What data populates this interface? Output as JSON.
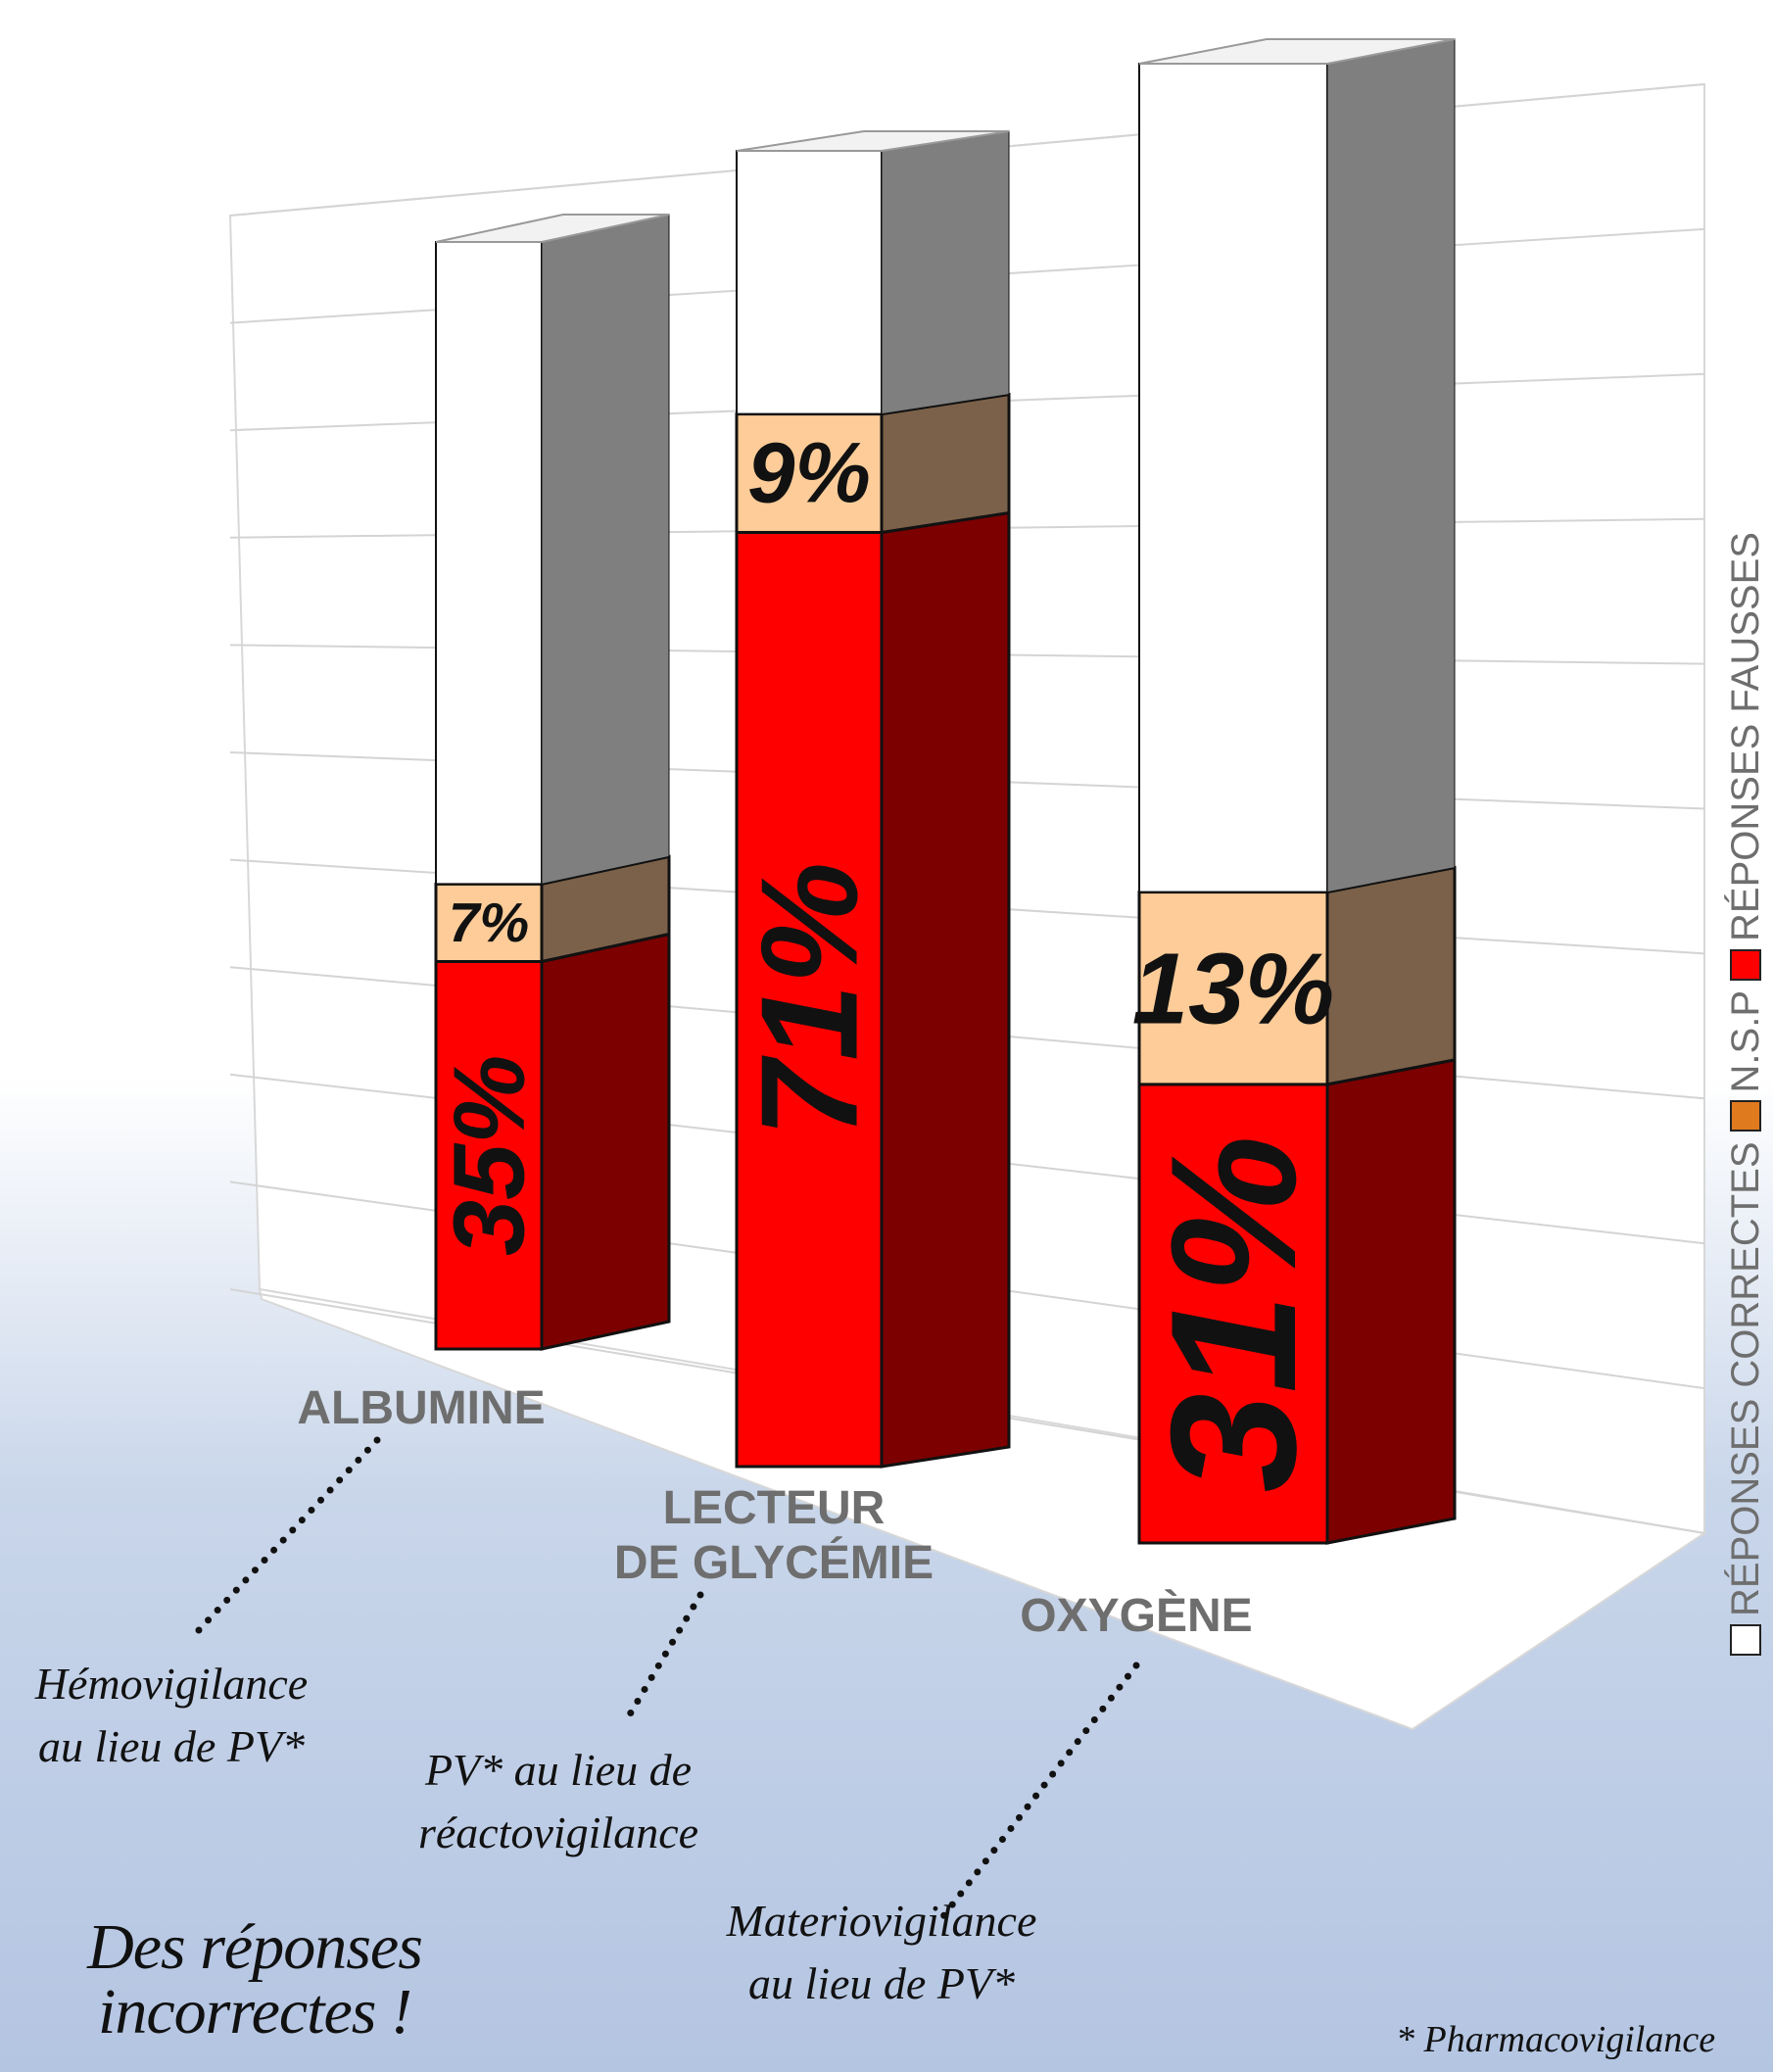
{
  "chart_data": {
    "type": "bar",
    "stacked": true,
    "categories": [
      "ALBUMINE",
      "LECTEUR DE GLYCÉMIE",
      "OXYGÈNE"
    ],
    "series": [
      {
        "name": "RÉPONSES FAUSSES",
        "color": "#ff0000",
        "values": [
          35,
          71,
          31
        ],
        "labels": [
          "35%",
          "71%",
          "31%"
        ]
      },
      {
        "name": "N.S.P",
        "color": "#e07a1f",
        "values": [
          7,
          9,
          13
        ],
        "labels": [
          "7%",
          "9%",
          "13%"
        ]
      },
      {
        "name": "RÉPONSES CORRECTES",
        "color": "#ffffff",
        "values": [
          58,
          20,
          56
        ]
      }
    ],
    "ylim": [
      0,
      100
    ],
    "grid": true,
    "legend_position": "right (vertical)"
  },
  "category_labels": {
    "albumine": "ALBUMINE",
    "lecteur_line1": "LECTEUR",
    "lecteur_line2": "DE GLYCÉMIE",
    "oxygene": "OXYGÈNE"
  },
  "annotations": {
    "albumine_line1": "Hémovigilance",
    "albumine_line2": "au lieu de PV*",
    "lecteur_line1": "PV* au lieu de",
    "lecteur_line2": "réactovigilance",
    "oxygene_line1": "Materiovigilance",
    "oxygene_line2": "au lieu de PV*"
  },
  "headline": {
    "line1": "Des réponses",
    "line2": "incorrectes !"
  },
  "footnote": "* Pharmacovigilance",
  "legend": {
    "correctes": "RÉPONSES CORRECTES",
    "nsp": "N.S.P",
    "fausses": "RÉPONSES FAUSSES"
  }
}
